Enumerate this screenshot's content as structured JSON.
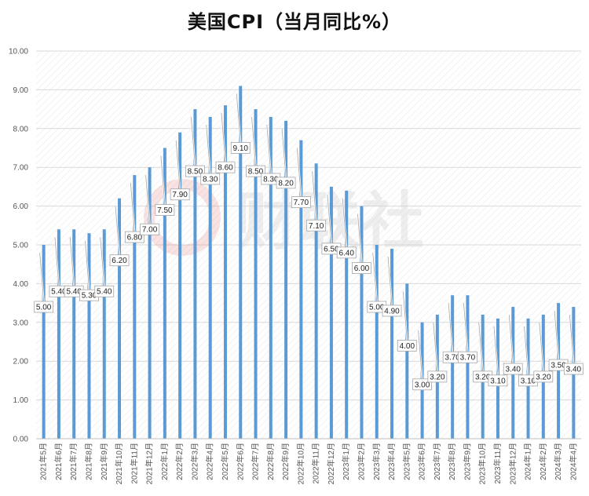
{
  "chart_data": {
    "type": "bar",
    "title": "美国CPI（当月同比%）",
    "xlabel": "",
    "ylabel": "",
    "ylim": [
      0,
      10
    ],
    "yticks": [
      "0.00",
      "1.00",
      "2.00",
      "3.00",
      "4.00",
      "5.00",
      "6.00",
      "7.00",
      "8.00",
      "9.00",
      "10.00"
    ],
    "grid": true,
    "bar_color": "#5b9bd5",
    "categories": [
      "2021年5月",
      "2021年6月",
      "2021年7月",
      "2021年8月",
      "2021年9月",
      "2021年10月",
      "2021年11月",
      "2021年12月",
      "2022年1月",
      "2022年2月",
      "2022年3月",
      "2022年4月",
      "2022年5月",
      "2022年6月",
      "2022年7月",
      "2022年8月",
      "2022年9月",
      "2022年10月",
      "2022年11月",
      "2022年12月",
      "2023年1月",
      "2023年2月",
      "2023年3月",
      "2023年4月",
      "2023年5月",
      "2023年6月",
      "2023年7月",
      "2023年8月",
      "2023年9月",
      "2023年10月",
      "2023年11月",
      "2023年12月",
      "2024年1月",
      "2024年2月",
      "2024年3月",
      "2024年4月"
    ],
    "values": [
      5.0,
      5.4,
      5.4,
      5.3,
      5.4,
      6.2,
      6.8,
      7.0,
      7.5,
      7.9,
      8.5,
      8.3,
      8.6,
      9.1,
      8.5,
      8.3,
      8.2,
      7.7,
      7.1,
      6.5,
      6.4,
      6.0,
      5.0,
      4.9,
      4.0,
      3.0,
      3.2,
      3.7,
      3.7,
      3.2,
      3.1,
      3.4,
      3.1,
      3.2,
      3.5,
      3.4
    ],
    "data_labels": [
      "5.00",
      "5.40",
      "5.40",
      "5.30",
      "5.40",
      "6.20",
      "6.80",
      "7.00",
      "7.50",
      "7.90",
      "8.50",
      "8.30",
      "8.60",
      "9.10",
      "8.50",
      "8.30",
      "8.20",
      "7.70",
      "7.10",
      "6.50",
      "6.40",
      "6.00",
      "5.00",
      "4.90",
      "4.00",
      "3.00",
      "3.20",
      "3.70",
      "3.70",
      "3.20",
      "3.10",
      "3.40",
      "3.10",
      "3.20",
      "3.50",
      "3.40"
    ]
  },
  "watermark": {
    "text": "财联社",
    "accent_color": "#e06060"
  }
}
